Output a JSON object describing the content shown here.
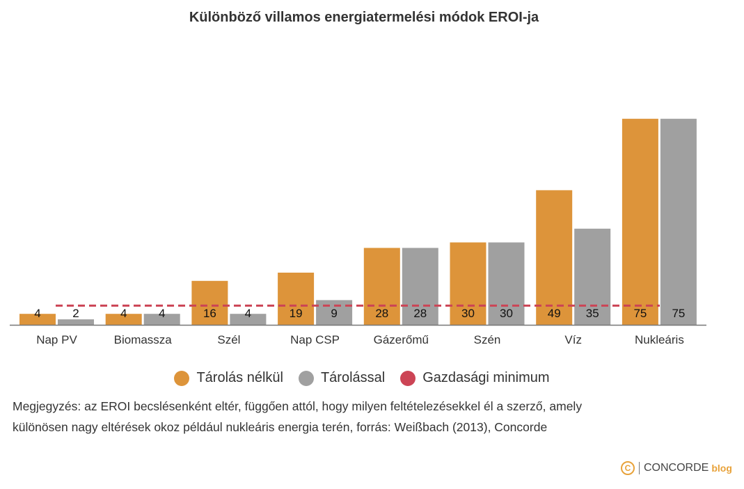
{
  "chart_data": {
    "type": "bar",
    "title": "Különböző villamos energiatermelési módok EROI-ja",
    "categories": [
      "Nap PV",
      "Biomassza",
      "Szél",
      "Nap CSP",
      "Gázerőmű",
      "Szén",
      "Víz",
      "Nukleáris"
    ],
    "series": [
      {
        "name": "Tárolás nélkül",
        "color": "#dd943a",
        "values": [
          4,
          4,
          16,
          19,
          28,
          30,
          49,
          75
        ]
      },
      {
        "name": "Tárolással",
        "color": "#a0a0a0",
        "values": [
          2,
          4,
          4,
          9,
          28,
          30,
          35,
          75
        ]
      }
    ],
    "reference_line": {
      "name": "Gazdasági minimum",
      "value": 7,
      "color": "#cc4455"
    },
    "ylim": [
      0,
      100
    ],
    "xlabel": "",
    "ylabel": "",
    "grid": false,
    "legend_position": "bottom-center"
  },
  "note": {
    "line1": "Megjegyzés: az EROI becslésenként eltér, függően attól, hogy milyen feltételezésekkel él a szerző, amely",
    "line2": "különösen nagy eltérések okoz például nukleáris energia terén, forrás: Weißbach (2013), Concorde"
  },
  "logo": {
    "icon": "C",
    "brand": "CONCORDE",
    "suffix": "blog"
  }
}
